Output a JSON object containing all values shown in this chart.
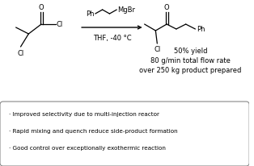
{
  "bg_color": "#ffffff",
  "text_color": "#000000",
  "reagent_below": "THF, -40 °C",
  "yield_line": "50% yield",
  "flow_line": "80 g/min total flow rate",
  "product_line": "over 250 kg product prepared",
  "bullet1": "· Improved selectivity due to multi-injection reactor",
  "bullet2": "· Rapid mixing and quench reduce side-product formation",
  "bullet3": "· Good control over exceptionally exothermic reaction",
  "font_size_main": 6.0,
  "font_size_bullet": 5.2,
  "lw": 0.9
}
